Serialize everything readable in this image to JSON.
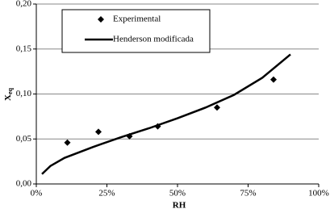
{
  "chart_data": {
    "type": "scatter-line",
    "x_label": "RH",
    "y_label": "X",
    "y_label_subscript": "eq",
    "xlim": [
      0,
      100
    ],
    "xticks": [
      {
        "value": 0,
        "label": "0%"
      },
      {
        "value": 25,
        "label": "25%"
      },
      {
        "value": 50,
        "label": "50%"
      },
      {
        "value": 75,
        "label": "75%"
      },
      {
        "value": 100,
        "label": "100%"
      }
    ],
    "ylim": [
      0,
      0.2
    ],
    "yticks": [
      {
        "value": 0,
        "label": "0,00"
      },
      {
        "value": 0.05,
        "label": "0,05"
      },
      {
        "value": 0.1,
        "label": "0,10"
      },
      {
        "value": 0.15,
        "label": "0,15"
      },
      {
        "value": 0.2,
        "label": "0,20"
      }
    ],
    "grid": true,
    "series": [
      {
        "name": "Experimental",
        "kind": "scatter",
        "color": "#000000",
        "x": [
          11,
          22,
          33,
          43,
          64,
          84
        ],
        "values": [
          0.046,
          0.058,
          0.053,
          0.064,
          0.085,
          0.116
        ]
      },
      {
        "name": "Henderson modificada",
        "kind": "line",
        "color": "#000000",
        "x": [
          2,
          5,
          10,
          20,
          30,
          40,
          50,
          60,
          70,
          80,
          90
        ],
        "values": [
          0.011,
          0.02,
          0.029,
          0.041,
          0.052,
          0.062,
          0.073,
          0.085,
          0.099,
          0.118,
          0.144
        ]
      }
    ]
  }
}
